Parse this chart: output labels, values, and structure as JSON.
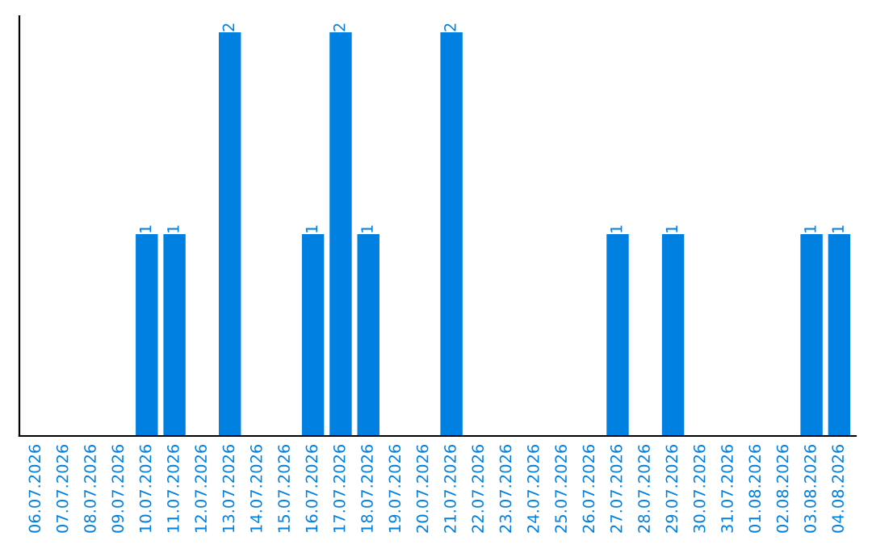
{
  "chart_data": {
    "type": "bar",
    "categories": [
      "06.07.2026",
      "07.07.2026",
      "08.07.2026",
      "09.07.2026",
      "10.07.2026",
      "11.07.2026",
      "12.07.2026",
      "13.07.2026",
      "14.07.2026",
      "15.07.2026",
      "16.07.2026",
      "17.07.2026",
      "18.07.2026",
      "19.07.2026",
      "20.07.2026",
      "21.07.2026",
      "22.07.2026",
      "23.07.2026",
      "24.07.2026",
      "25.07.2026",
      "26.07.2026",
      "27.07.2026",
      "28.07.2026",
      "29.07.2026",
      "30.07.2026",
      "31.07.2026",
      "01.08.2026",
      "02.08.2026",
      "03.08.2026",
      "04.08.2026"
    ],
    "values": [
      0,
      0,
      0,
      0,
      1,
      1,
      0,
      2,
      0,
      0,
      1,
      2,
      1,
      0,
      0,
      2,
      0,
      0,
      0,
      0,
      0,
      1,
      0,
      1,
      0,
      0,
      0,
      0,
      1,
      1
    ],
    "value_labels": [
      null,
      null,
      null,
      null,
      "1",
      "1",
      null,
      "2",
      null,
      null,
      "1",
      "2",
      "1",
      null,
      null,
      "2",
      null,
      null,
      null,
      null,
      null,
      "1",
      null,
      "1",
      null,
      null,
      null,
      null,
      "1",
      "1"
    ],
    "color": "#0080e0",
    "ylim": [
      0,
      2.08
    ],
    "tick_labels": "x",
    "grid": false,
    "legend": false
  }
}
